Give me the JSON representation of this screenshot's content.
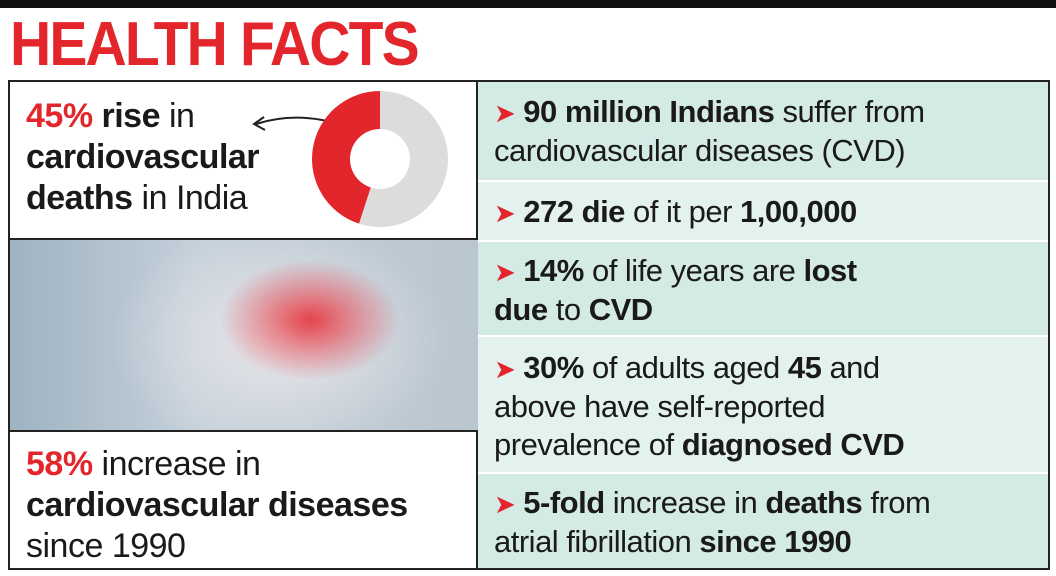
{
  "header": {
    "title": "HEALTH FACTS"
  },
  "left_top": {
    "lines": [
      [
        {
          "text": "45%",
          "style": "red"
        },
        {
          "text": " rise",
          "style": "bold"
        },
        {
          "text": " in",
          "style": "normal"
        }
      ],
      [
        {
          "text": "cardiovascular",
          "style": "bold"
        }
      ],
      [
        {
          "text": "deaths",
          "style": "bold"
        },
        {
          "text": " in India",
          "style": "normal"
        }
      ]
    ]
  },
  "donut": {
    "value": 45,
    "color": "#e3262b",
    "rest_color": "#dedcdb"
  },
  "left_bottom": {
    "lines": [
      [
        {
          "text": "58%",
          "style": "red"
        },
        {
          "text": " increase in",
          "style": "normal"
        }
      ],
      [
        {
          "text": "cardiovascular diseases",
          "style": "bold"
        }
      ],
      [
        {
          "text": "since 1990",
          "style": "normal"
        }
      ]
    ]
  },
  "facts": [
    {
      "lines": [
        [
          {
            "text": "90 million Indians",
            "style": "bold"
          },
          {
            "text": " suffer from",
            "style": "normal"
          }
        ],
        [
          {
            "text": "cardiovascular diseases (CVD)",
            "style": "normal"
          }
        ]
      ]
    },
    {
      "lines": [
        [
          {
            "text": "272 die",
            "style": "bold"
          },
          {
            "text": " of it per ",
            "style": "normal"
          },
          {
            "text": "1,00,000",
            "style": "bold"
          }
        ]
      ]
    },
    {
      "lines": [
        [
          {
            "text": "14%",
            "style": "bold"
          },
          {
            "text": " of life years are ",
            "style": "normal"
          },
          {
            "text": "lost",
            "style": "bold"
          }
        ],
        [
          {
            "text": "due",
            "style": "bold"
          },
          {
            "text": " to ",
            "style": "normal"
          },
          {
            "text": "CVD",
            "style": "bold"
          }
        ]
      ]
    },
    {
      "lines": [
        [
          {
            "text": "30%",
            "style": "bold"
          },
          {
            "text": " of adults aged ",
            "style": "normal"
          },
          {
            "text": "45",
            "style": "bold"
          },
          {
            "text": " and",
            "style": "normal"
          }
        ],
        [
          {
            "text": "above have self-reported",
            "style": "normal"
          }
        ],
        [
          {
            "text": "prevalence of ",
            "style": "normal"
          },
          {
            "text": "diagnosed CVD",
            "style": "bold"
          }
        ]
      ]
    },
    {
      "lines": [
        [
          {
            "text": "5-fold",
            "style": "bold"
          },
          {
            "text": " increase in ",
            "style": "normal"
          },
          {
            "text": "deaths",
            "style": "bold"
          },
          {
            "text": " from",
            "style": "normal"
          }
        ],
        [
          {
            "text": "atrial fibrillation ",
            "style": "normal"
          },
          {
            "text": "since 1990",
            "style": "bold"
          }
        ]
      ]
    }
  ]
}
